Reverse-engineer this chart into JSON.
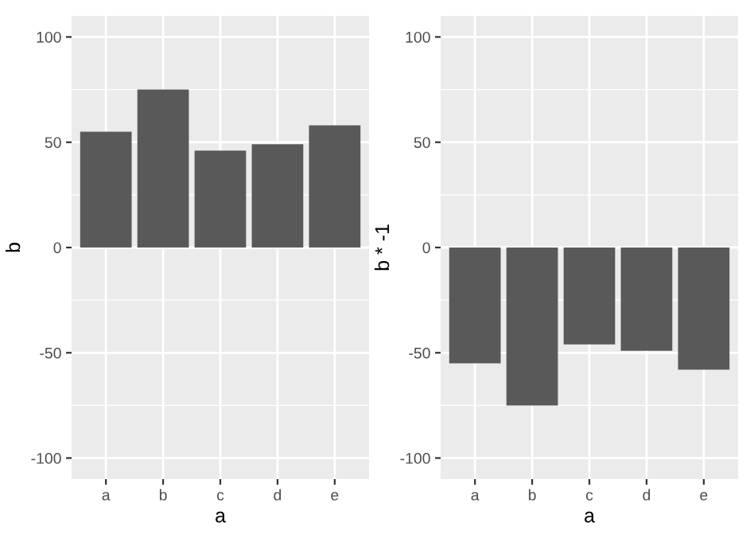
{
  "chart_data": [
    {
      "type": "bar",
      "categories": [
        "a",
        "b",
        "c",
        "d",
        "e"
      ],
      "values": [
        55,
        75,
        46,
        49,
        58
      ],
      "color": "#595959",
      "xlabel": "a",
      "ylabel": "b",
      "ylim": [
        -110,
        110
      ],
      "yticks": [
        -100,
        -50,
        0,
        50,
        100
      ],
      "grid": true
    },
    {
      "type": "bar",
      "categories": [
        "a",
        "b",
        "c",
        "d",
        "e"
      ],
      "values": [
        -55,
        -75,
        -46,
        -49,
        -58
      ],
      "color": "#595959",
      "xlabel": "a",
      "ylabel": "b * -1",
      "ylim": [
        -110,
        110
      ],
      "yticks": [
        -100,
        -50,
        0,
        50,
        100
      ],
      "grid": true
    }
  ]
}
